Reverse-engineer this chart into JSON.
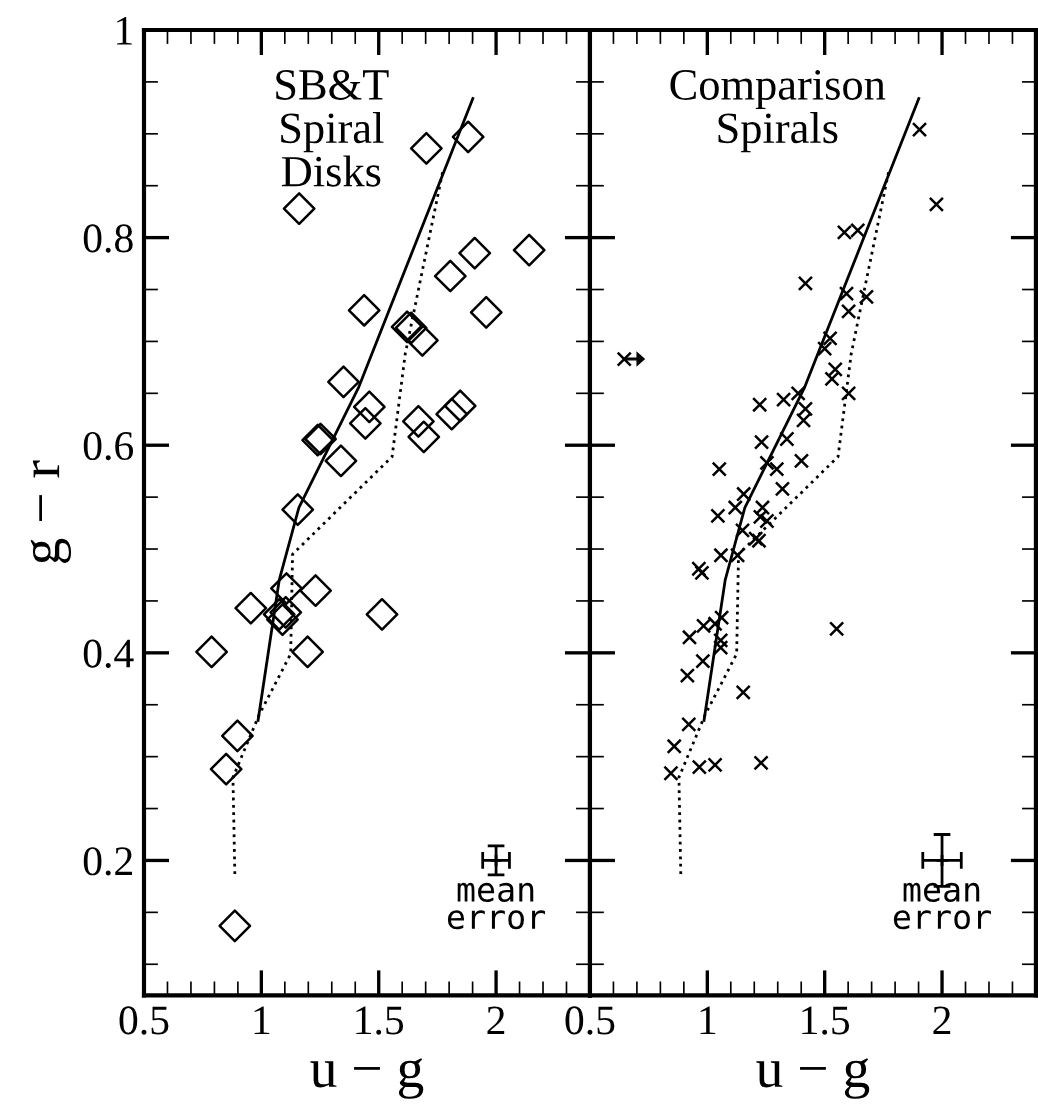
{
  "chart_data": [
    {
      "type": "scatter",
      "xlabel": "u − g",
      "ylabel": "g − r",
      "xlim": [
        0.5,
        2.4
      ],
      "ylim": [
        0.07,
        1
      ],
      "xticks": [
        0.5,
        1,
        1.5,
        2
      ],
      "yticks": [
        0.2,
        0.4,
        0.6,
        0.8,
        1
      ],
      "grid": false,
      "legend": false,
      "annotations": [
        {
          "text": "SB&T\nSpiral\nDisks"
        },
        {
          "text": "mean\nerror",
          "x": 2,
          "y": 0.2
        }
      ],
      "series": [
        {
          "type": "scatter",
          "marker": "diamond",
          "color": "#000000",
          "x": [
            1.161,
            1.703,
            1.881,
            2.141,
            1.909,
            1.805,
            1.958,
            1.438,
            1.621,
            1.638,
            1.686,
            1.35,
            1.46,
            1.443,
            1.811,
            1.847,
            1.669,
            1.692,
            1.24,
            1.252,
            1.339,
            1.155,
            1.107,
            1.231,
            0.955,
            1.076,
            1.104,
            1.09,
            1.514,
            0.788,
            1.197,
            0.898,
            0.85,
            0.887
          ],
          "values": [
            0.828,
            0.886,
            0.897,
            0.788,
            0.785,
            0.763,
            0.728,
            0.73,
            0.714,
            0.713,
            0.701,
            0.661,
            0.637,
            0.621,
            0.63,
            0.638,
            0.623,
            0.608,
            0.605,
            0.606,
            0.585,
            0.538,
            0.462,
            0.46,
            0.443,
            0.437,
            0.439,
            0.432,
            0.437,
            0.401,
            0.401,
            0.32,
            0.288,
            0.137
          ]
        },
        {
          "type": "line",
          "line_style": "solid",
          "color": "#000000",
          "x": [
            0.986,
            1.076,
            1.16,
            1.415,
            1.901
          ],
          "values": [
            0.335,
            0.47,
            0.54,
            0.656,
            0.934
          ]
        },
        {
          "type": "line",
          "line_style": "dotted",
          "color": "#000000",
          "x": [
            0.887,
            0.879,
            0.99,
            1.125,
            1.133,
            1.557,
            1.613,
            1.774
          ],
          "values": [
            0.187,
            0.28,
            0.34,
            0.399,
            0.495,
            0.589,
            0.688,
            0.865
          ]
        },
        {
          "type": "scatter",
          "marker": "cross",
          "color": "#000000",
          "x": [
            2.0
          ],
          "values": [
            0.2
          ],
          "errors": [
            0.014
          ],
          "xerrors": [
            0.057
          ]
        }
      ]
    },
    {
      "type": "scatter",
      "xlabel": "u − g",
      "xlim": [
        0.5,
        2.4
      ],
      "ylim": [
        0.07,
        1
      ],
      "xticks": [
        0.5,
        1,
        1.5,
        2
      ],
      "yticks": [
        0.2,
        0.4,
        0.6,
        0.8,
        1
      ],
      "tick_labels": "x",
      "grid": false,
      "legend": false,
      "annotations": [
        {
          "text": "Comparison\nSpirals"
        },
        {
          "text": "mean\nerror",
          "x": 2,
          "y": 0.2
        }
      ],
      "series": [
        {
          "type": "scatter",
          "marker": "cross",
          "color": "#000000",
          "x": [
            1.904,
            1.976,
            1.584,
            1.641,
            1.418,
            1.593,
            1.678,
            1.602,
            1.523,
            1.5,
            1.545,
            1.531,
            1.602,
            1.223,
            1.325,
            1.387,
            1.418,
            1.41,
            1.231,
            1.339,
            1.254,
            1.296,
            1.401,
            1.051,
            1.32,
            1.155,
            1.119,
            1.235,
            1.045,
            1.226,
            1.254,
            1.15,
            1.206,
            1.22,
            1.058,
            1.129,
            0.964,
            0.977,
            0.984,
            1.033,
            1.061,
            0.924,
            1.057,
            1.057,
            0.981,
            0.915,
            1.551,
            1.153,
            0.921,
            0.859,
            0.845,
            0.966,
            1.033,
            1.229,
            0.646
          ],
          "values": [
            0.904,
            0.832,
            0.805,
            0.807,
            0.756,
            0.746,
            0.743,
            0.729,
            0.703,
            0.693,
            0.673,
            0.664,
            0.65,
            0.639,
            0.644,
            0.65,
            0.635,
            0.624,
            0.603,
            0.606,
            0.583,
            0.577,
            0.585,
            0.577,
            0.558,
            0.553,
            0.54,
            0.54,
            0.532,
            0.531,
            0.527,
            0.518,
            0.51,
            0.508,
            0.494,
            0.494,
            0.481,
            0.477,
            0.426,
            0.428,
            0.434,
            0.415,
            0.412,
            0.405,
            0.392,
            0.378,
            0.423,
            0.362,
            0.331,
            0.31,
            0.284,
            0.29,
            0.292,
            0.294,
            0.683
          ]
        },
        {
          "type": "line",
          "line_style": "solid",
          "color": "#000000",
          "x": [
            0.986,
            1.076,
            1.16,
            1.415,
            1.901
          ],
          "values": [
            0.335,
            0.47,
            0.54,
            0.656,
            0.934
          ]
        },
        {
          "type": "line",
          "line_style": "dotted",
          "color": "#000000",
          "x": [
            0.887,
            0.879,
            0.99,
            1.125,
            1.133,
            1.557,
            1.613,
            1.774
          ],
          "values": [
            0.187,
            0.28,
            0.34,
            0.399,
            0.495,
            0.589,
            0.688,
            0.865
          ]
        },
        {
          "type": "scatter",
          "marker": "cross",
          "color": "#000000",
          "x": [
            2.0
          ],
          "values": [
            0.2
          ],
          "errors": [
            0.025
          ],
          "xerrors": [
            0.082
          ]
        }
      ]
    }
  ]
}
